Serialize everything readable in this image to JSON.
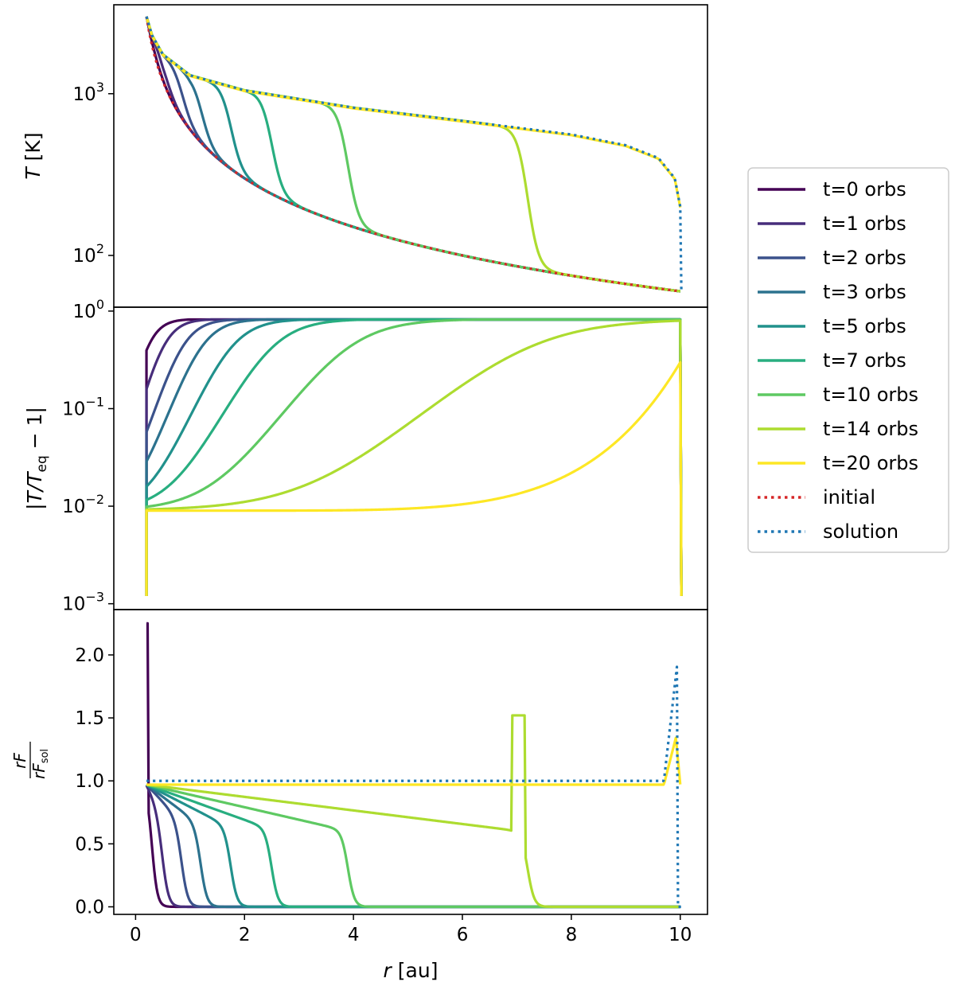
{
  "chart_data": {
    "type": "line",
    "xlabel": "r [au]",
    "xlim": [
      -0.4,
      10.5
    ],
    "x_ticks": [
      0,
      2,
      4,
      6,
      8,
      10
    ],
    "x_tick_labels": [
      "0",
      "2",
      "4",
      "6",
      "8",
      "10"
    ],
    "legend": {
      "placement": "right",
      "entries": [
        {
          "label": "t=0 orbs",
          "color": "#440154",
          "style": "solid"
        },
        {
          "label": "t=1 orbs",
          "color": "#472d7b",
          "style": "solid"
        },
        {
          "label": "t=2 orbs",
          "color": "#3b528b",
          "style": "solid"
        },
        {
          "label": "t=3 orbs",
          "color": "#2c728e",
          "style": "solid"
        },
        {
          "label": "t=5 orbs",
          "color": "#21918c",
          "style": "solid"
        },
        {
          "label": "t=7 orbs",
          "color": "#28ae80",
          "style": "solid"
        },
        {
          "label": "t=10 orbs",
          "color": "#5ec962",
          "style": "solid"
        },
        {
          "label": "t=14 orbs",
          "color": "#addc30",
          "style": "solid"
        },
        {
          "label": "t=20 orbs",
          "color": "#fde725",
          "style": "solid"
        },
        {
          "label": "initial",
          "color": "#d62728",
          "style": "dotted"
        },
        {
          "label": "solution",
          "color": "#1f77b4",
          "style": "dotted"
        }
      ]
    },
    "panels": [
      {
        "name": "temperature",
        "ylabel_main": "T",
        "ylabel_unit": " [K]",
        "yscale": "log",
        "ylim_log10": [
          1.68,
          3.55
        ],
        "y_ticks": [
          {
            "log10": 2,
            "base": "10",
            "exp": "2"
          },
          {
            "log10": 3,
            "base": "10",
            "exp": "3"
          }
        ],
        "model": {
          "T_in": 3000,
          "T_out": 60,
          "r_in": 0.2,
          "r_out": 10,
          "front_radii": [
            0.22,
            0.5,
            0.85,
            1.2,
            1.75,
            2.5,
            3.9,
            7.2,
            10.0
          ],
          "front_width": 0.1,
          "solution": [
            [
              0.2,
              3000
            ],
            [
              0.3,
              2300
            ],
            [
              0.5,
              1750
            ],
            [
              1,
              1300
            ],
            [
              2,
              1050
            ],
            [
              4,
              820
            ],
            [
              6,
              680
            ],
            [
              8,
              560
            ],
            [
              9,
              480
            ],
            [
              9.6,
              400
            ],
            [
              9.9,
              300
            ],
            [
              10,
              200
            ],
            [
              10.02,
              60
            ]
          ]
        }
      },
      {
        "name": "relative-error",
        "ylabel_main": "|T/T",
        "ylabel_sub": "eq",
        "ylabel_tail": " − 1|",
        "yscale": "log",
        "ylim_log10": [
          -3.06,
          0.04
        ],
        "y_ticks": [
          {
            "log10": 0,
            "base": "10",
            "exp": "0"
          },
          {
            "log10": -1,
            "base": "10",
            "exp": "−1"
          },
          {
            "log10": -2,
            "base": "10",
            "exp": "−2"
          },
          {
            "log10": -3,
            "base": "10",
            "exp": "−3"
          }
        ],
        "plateau": 0.82,
        "floor": 0.009
      },
      {
        "name": "flux-ratio",
        "ylabel_num": "rF",
        "ylabel_den": "rF",
        "ylabel_den_sub": "sol",
        "yscale": "linear",
        "ylim": [
          -0.06,
          2.36
        ],
        "y_ticks": [
          0.0,
          0.5,
          1.0,
          1.5,
          2.0
        ],
        "y_tick_labels": [
          "0.0",
          "0.5",
          "1.0",
          "1.5",
          "2.0"
        ],
        "initial_peak": 2.25,
        "t14_peak": 1.52,
        "t20_level": 0.97,
        "solution_level": 1.0,
        "solution_peak": 1.96
      }
    ]
  }
}
